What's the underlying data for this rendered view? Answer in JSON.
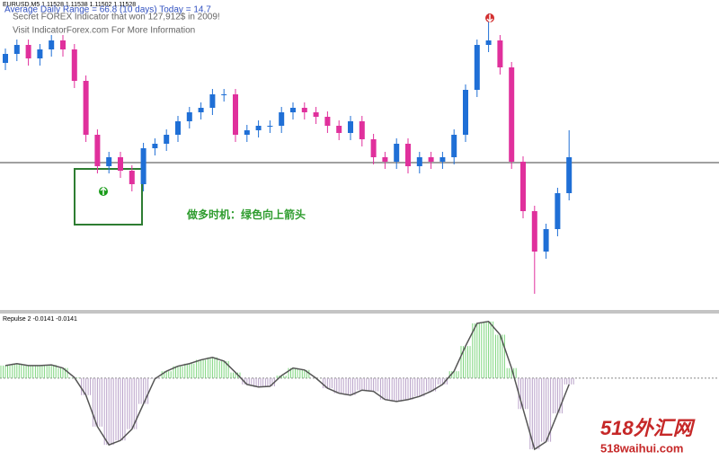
{
  "header": {
    "symbol": "EURUSD,M5  1.11528 1.11538 1.11502 1.11528",
    "adr": "Average Daily Range = 66.8 (10 days)   Today = 14.7",
    "promo": "Secret FOREX Indicator that won 127,912$ in 2009!",
    "visit": "Visit IndicatorForex.com For More Information"
  },
  "annotation": "做多时机：绿色向上箭头",
  "indicator_label": "Repulse 2 -0.0141 -0.0141",
  "watermark": {
    "cn": "518外汇网",
    "url": "518waihui.com"
  },
  "chart_data": [
    {
      "type": "candlestick",
      "ylim": [
        0,
        345
      ],
      "reference_line": 164,
      "up_color": "#1f6fd6",
      "down_color": "#e0309c",
      "open": [
        275,
        285,
        295,
        280,
        290,
        300,
        290,
        255,
        195,
        160,
        170,
        155,
        140,
        180,
        185,
        195,
        210,
        220,
        225,
        240,
        240,
        195,
        200,
        205,
        205,
        220,
        225,
        220,
        215,
        205,
        197,
        210,
        190,
        170,
        165,
        185,
        160,
        170,
        165,
        170,
        195,
        245,
        295,
        300,
        270,
        165,
        110,
        65,
        90,
        130
      ],
      "high": [
        291,
        301,
        301,
        296,
        306,
        306,
        296,
        261,
        201,
        176,
        176,
        161,
        186,
        191,
        201,
        216,
        226,
        231,
        246,
        246,
        246,
        206,
        211,
        211,
        226,
        231,
        231,
        226,
        221,
        211,
        216,
        216,
        196,
        176,
        191,
        191,
        176,
        176,
        176,
        201,
        251,
        301,
        330,
        306,
        276,
        171,
        116,
        96,
        136,
        200
      ],
      "low": [
        267,
        277,
        272,
        272,
        282,
        282,
        247,
        187,
        152,
        152,
        147,
        132,
        132,
        172,
        177,
        187,
        202,
        212,
        217,
        232,
        187,
        187,
        192,
        197,
        197,
        212,
        212,
        207,
        197,
        189,
        189,
        182,
        162,
        157,
        157,
        152,
        152,
        157,
        157,
        162,
        187,
        237,
        287,
        262,
        157,
        102,
        18,
        57,
        82,
        122
      ],
      "close": [
        285,
        295,
        280,
        290,
        300,
        290,
        255,
        195,
        160,
        170,
        155,
        140,
        180,
        185,
        195,
        210,
        220,
        225,
        240,
        240,
        195,
        200,
        205,
        205,
        220,
        225,
        220,
        215,
        205,
        197,
        210,
        190,
        170,
        165,
        185,
        160,
        170,
        165,
        170,
        195,
        245,
        295,
        300,
        270,
        165,
        110,
        65,
        90,
        130,
        170
      ]
    },
    {
      "type": "histogram_line",
      "ylim": [
        -1.3,
        1.04
      ],
      "up_color": "#7fd67f",
      "down_color": "#b9a2c9",
      "line_color": "#555555",
      "values": [
        0.2,
        0.23,
        0.2,
        0.2,
        0.21,
        0.16,
        0.01,
        -0.27,
        -0.77,
        -1.06,
        -0.99,
        -0.81,
        -0.41,
        -0.01,
        0.11,
        0.19,
        0.23,
        0.29,
        0.33,
        0.27,
        0.09,
        -0.1,
        -0.14,
        -0.13,
        0.04,
        0.16,
        0.13,
        0,
        -0.16,
        -0.24,
        -0.27,
        -0.19,
        -0.21,
        -0.34,
        -0.37,
        -0.34,
        -0.29,
        -0.21,
        -0.1,
        0.11,
        0.51,
        0.87,
        0.9,
        0.69,
        0.16,
        -0.49,
        -1.13,
        -1.01,
        -0.56,
        -0.1
      ]
    }
  ]
}
